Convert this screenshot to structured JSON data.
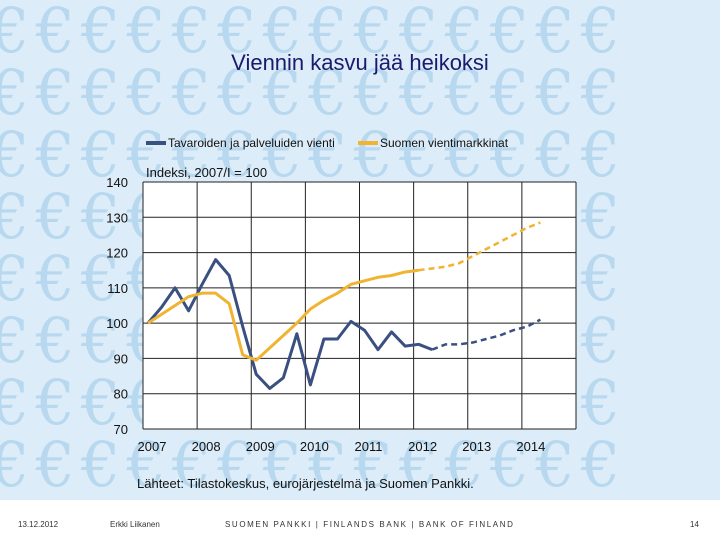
{
  "slide": {
    "title": "Viennin kasvu jää heikoksi",
    "footer_date": "13.12.2012",
    "footer_author": "Erkki Liikanen",
    "footer_bank": "SUOMEN PANKKI | FINLANDS BANK | BANK OF FINLAND",
    "page_number": "14",
    "background_glyph": "€"
  },
  "chart_data": {
    "type": "line",
    "title": "",
    "subtitle": "Indeksi, 2007/I = 100",
    "source": "Lähteet: Tilastokeskus, eurojärjestelmä ja Suomen Pankki.",
    "xlabel": "",
    "ylabel": "",
    "ylim": [
      70,
      140
    ],
    "yticks": [
      70,
      80,
      90,
      100,
      110,
      120,
      130,
      140
    ],
    "xticks": [
      "2007",
      "2008",
      "2009",
      "2010",
      "2011",
      "2012",
      "2013",
      "2014"
    ],
    "x_quarters_start": 2007.0,
    "grid": true,
    "legend_position": "top",
    "series": [
      {
        "name": "Tavaroiden ja palveluiden vienti",
        "color": "#3a5080",
        "values": [
          100,
          104.5,
          110,
          103.5,
          111,
          118,
          113.5,
          99,
          85.5,
          81.5,
          84.5,
          97,
          82.5,
          95.5,
          95.5,
          100.5,
          98,
          92.5,
          97.5,
          93.5,
          94,
          92.5,
          94,
          94,
          94.5,
          95.5,
          96.5,
          98,
          99,
          101
        ],
        "forecast_from_index": 21
      },
      {
        "name": "Suomen vientimarkkinat",
        "color": "#f0b432",
        "values": [
          100,
          102.5,
          105,
          107.5,
          108.5,
          108.5,
          105.5,
          91,
          89.5,
          93,
          96.5,
          100,
          104,
          106.5,
          108.5,
          111,
          112,
          113,
          113.5,
          114.5,
          115,
          115.5,
          116,
          117,
          119,
          121,
          123,
          125,
          127,
          128.5
        ],
        "forecast_from_index": 20
      }
    ]
  }
}
